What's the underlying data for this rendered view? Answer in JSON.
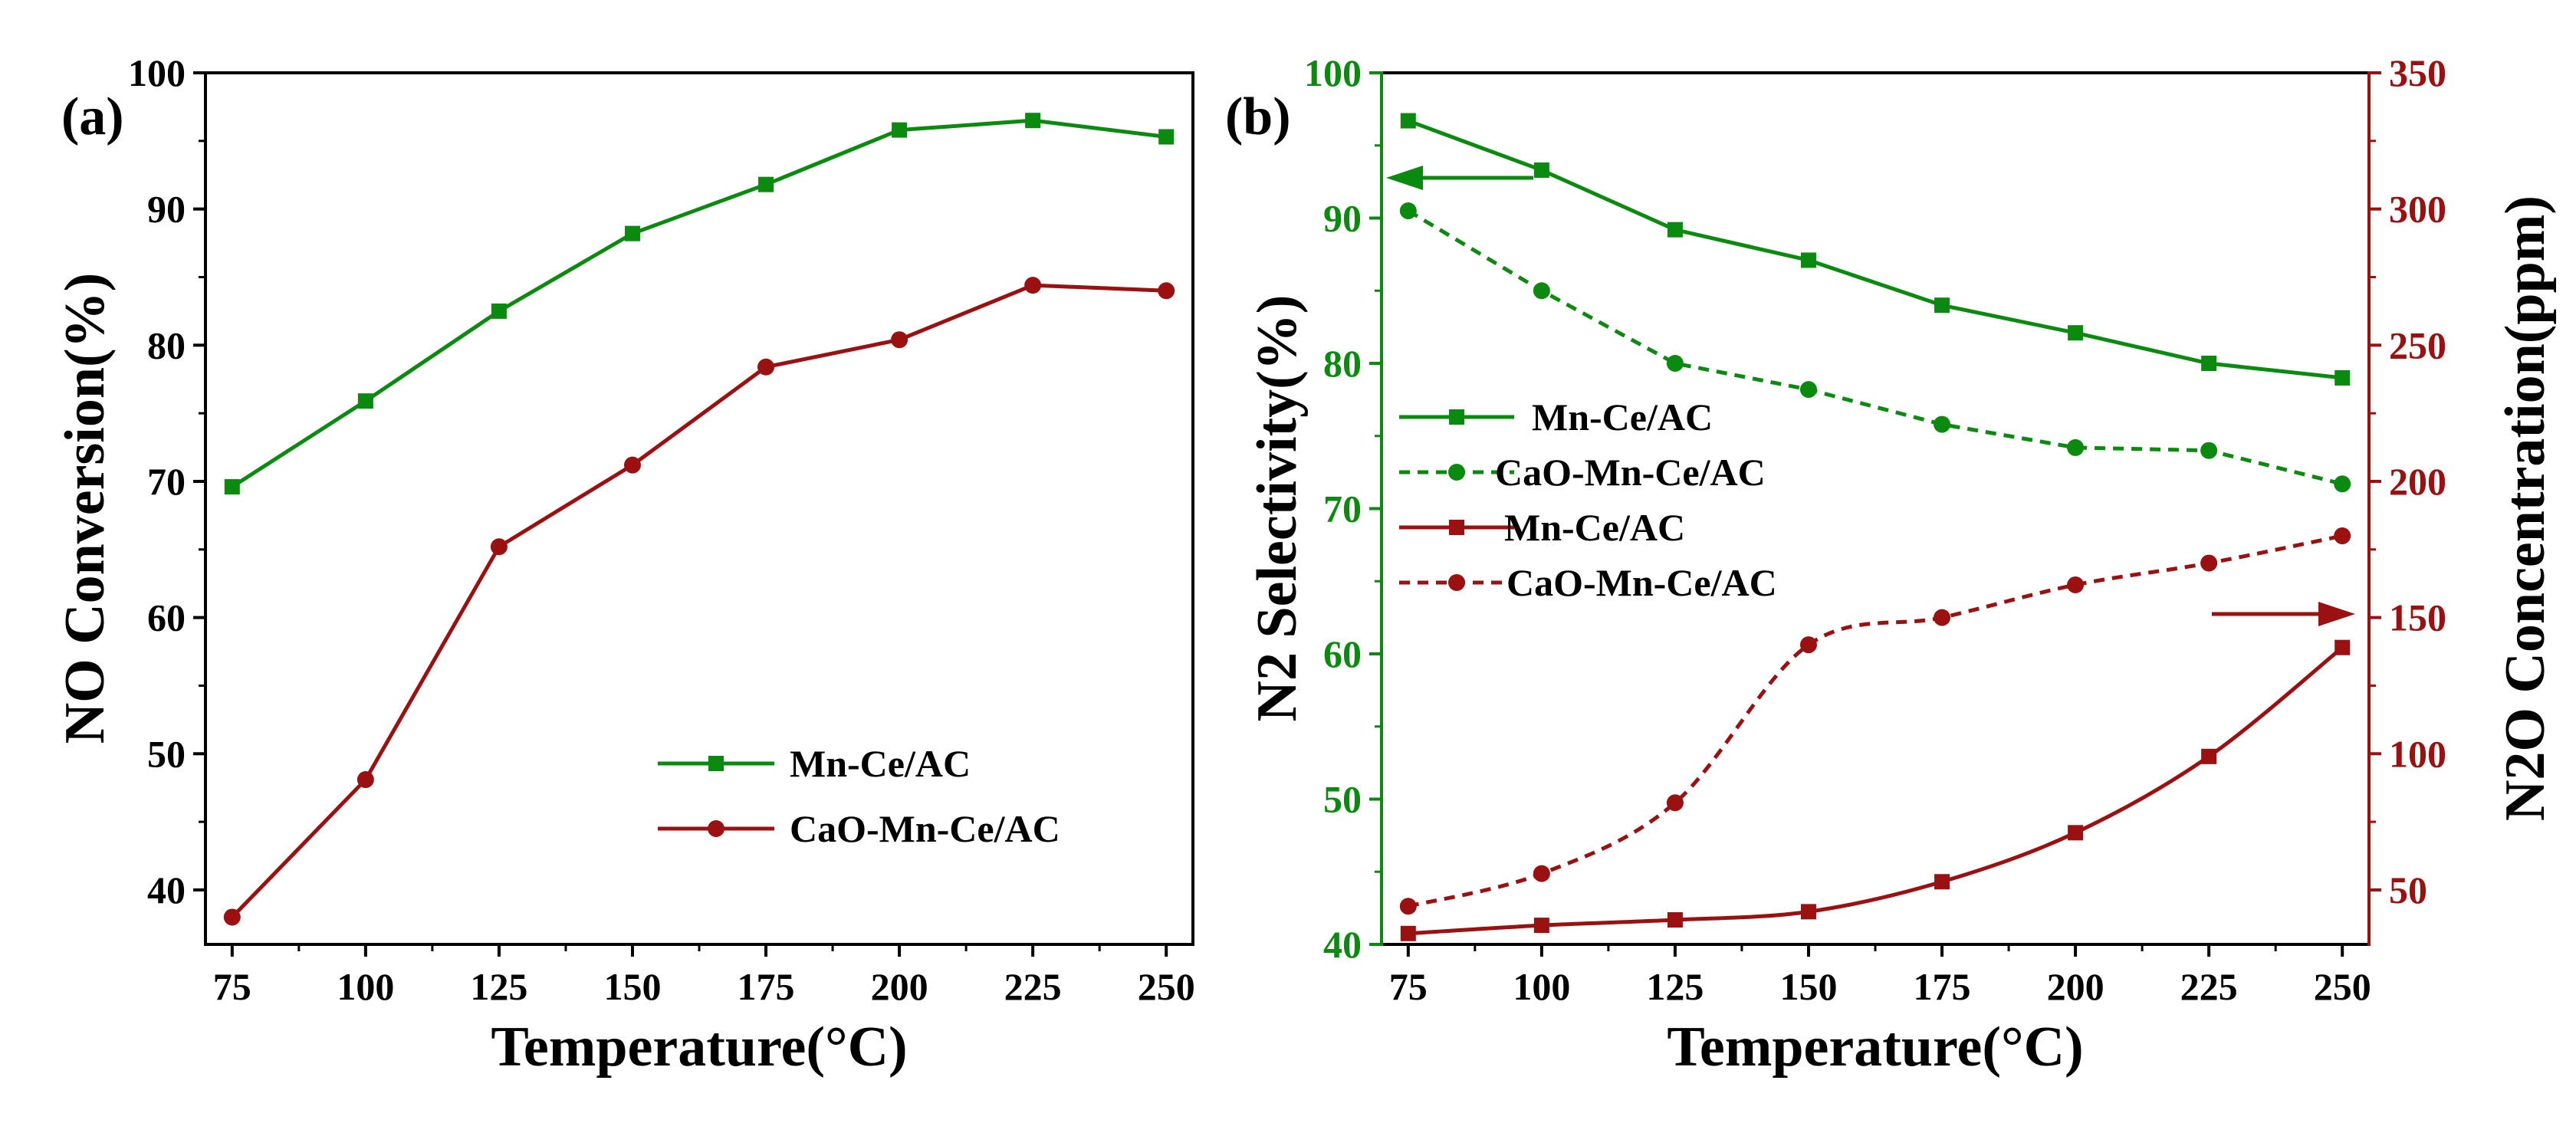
{
  "colors": {
    "green": "#0b8a10",
    "red": "#9b1010",
    "axis": "#000000"
  },
  "chart_data": [
    {
      "type": "line",
      "panel_label": "(a)",
      "xlabel": "Temperature(°C)",
      "ylabel": "NO Conversion(%)",
      "categories": [
        75,
        100,
        125,
        150,
        175,
        200,
        225,
        250
      ],
      "x_tick_labels": [
        "75",
        "100",
        "125",
        "150",
        "175",
        "200",
        "225",
        "250"
      ],
      "xlim": [
        70,
        255
      ],
      "ylim": [
        36,
        100
      ],
      "y_ticks": [
        40,
        50,
        60,
        70,
        80,
        90,
        100
      ],
      "y_tick_labels": [
        "40",
        "50",
        "60",
        "70",
        "80",
        "90",
        "100"
      ],
      "legend_position": "lower-right",
      "series": [
        {
          "name": "Mn-Ce/AC",
          "color": "#0b8a10",
          "marker": "square",
          "dashed": false,
          "smooth": false,
          "values": [
            69.6,
            75.9,
            82.5,
            88.2,
            91.8,
            95.8,
            96.5,
            95.3
          ]
        },
        {
          "name": "CaO-Mn-Ce/AC",
          "color": "#9b1010",
          "marker": "circle",
          "dashed": false,
          "smooth": false,
          "values": [
            38.0,
            48.1,
            65.2,
            71.2,
            78.4,
            80.4,
            84.4,
            84.0
          ]
        }
      ]
    },
    {
      "type": "line",
      "panel_label": "(b)",
      "xlabel": "Temperature(°C)",
      "ylabel_left": "N2 Selectivity(%)",
      "ylabel_right": "N2O Concentration(ppm)",
      "categories": [
        75,
        100,
        125,
        150,
        175,
        200,
        225,
        250
      ],
      "x_tick_labels": [
        "75",
        "100",
        "125",
        "150",
        "175",
        "200",
        "225",
        "250"
      ],
      "xlim": [
        70,
        255
      ],
      "ylim_left": [
        40,
        100
      ],
      "y_ticks_left": [
        40,
        50,
        60,
        70,
        80,
        90,
        100
      ],
      "y_tick_labels_left": [
        "40",
        "50",
        "60",
        "70",
        "80",
        "90",
        "100"
      ],
      "ylim_right": [
        30,
        350
      ],
      "y_ticks_right": [
        50,
        100,
        150,
        200,
        250,
        300,
        350
      ],
      "y_tick_labels_right": [
        "50",
        "100",
        "150",
        "200",
        "250",
        "300",
        "350"
      ],
      "legend_position": "center-left",
      "annotations": [
        "left-arrow points to left axis (N2 Selectivity)",
        "right-arrow points to right axis (N2O Concentration)"
      ],
      "series": [
        {
          "name": "Mn-Ce/AC",
          "axis": "left",
          "color": "#0b8a10",
          "marker": "square",
          "dashed": false,
          "smooth": false,
          "values": [
            96.7,
            93.3,
            89.2,
            87.1,
            84.0,
            82.1,
            80.0,
            79.0
          ]
        },
        {
          "name": "CaO-Mn-Ce/AC",
          "axis": "left",
          "color": "#0b8a10",
          "marker": "circle",
          "dashed": true,
          "smooth": false,
          "values": [
            90.5,
            85.0,
            80.0,
            78.2,
            75.8,
            74.2,
            74.0,
            71.7
          ]
        },
        {
          "name": "Mn-Ce/AC",
          "axis": "right",
          "color": "#9b1010",
          "marker": "square",
          "dashed": false,
          "smooth": true,
          "values": [
            34,
            37,
            39,
            42,
            53,
            71,
            99,
            139
          ]
        },
        {
          "name": "CaO-Mn-Ce/AC",
          "axis": "right",
          "color": "#9b1010",
          "marker": "circle",
          "dashed": true,
          "smooth": true,
          "values": [
            44,
            56,
            82,
            140,
            150,
            162,
            170,
            180
          ]
        }
      ]
    }
  ]
}
